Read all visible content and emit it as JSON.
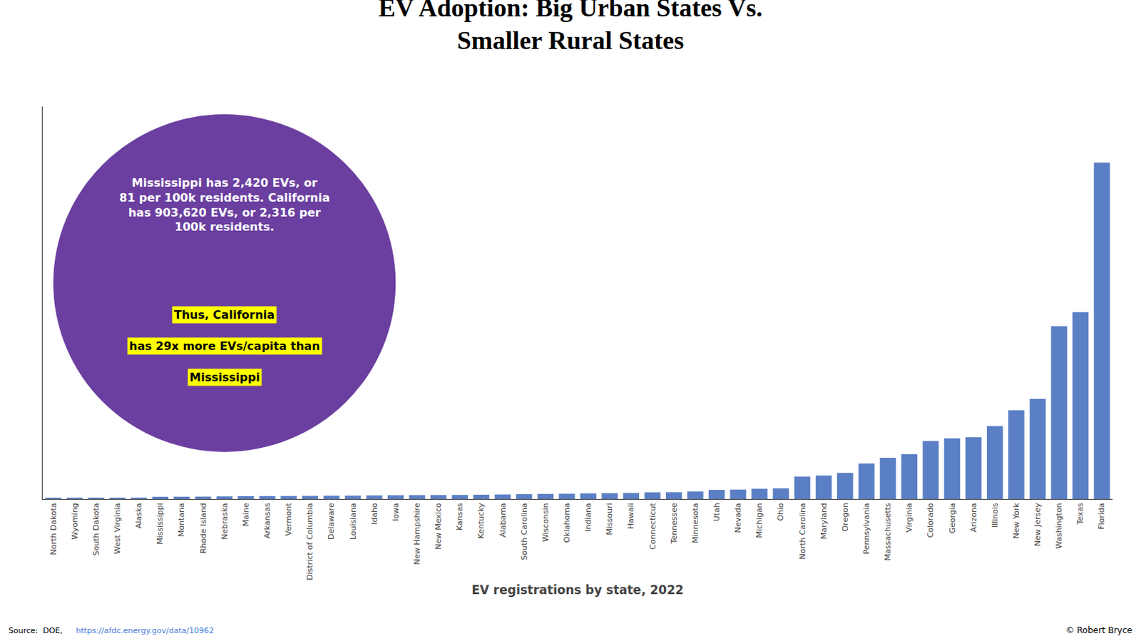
{
  "chart_data": {
    "type": "bar",
    "title": "EV Adoption: Big Urban States Vs.\nSmaller Rural States",
    "xlabel": "EV registrations by state, 2022",
    "categories": [
      "North Dakota",
      "Wyoming",
      "South Dakota",
      "West Virginia",
      "Alaska",
      "Mississippi",
      "Montana",
      "Rhode Island",
      "Nebraska",
      "Maine",
      "Arkansas",
      "Vermont",
      "District of Columbia",
      "Delaware",
      "Louisiana",
      "Idaho",
      "Iowa",
      "New Hampshire",
      "New Mexico",
      "Kansas",
      "Kentucky",
      "Alabama",
      "South Carolina",
      "Wisconsin",
      "Oklahoma",
      "Indiana",
      "Missouri",
      "Hawaii",
      "Connecticut",
      "Tennessee",
      "Minnesota",
      "Utah",
      "Nevada",
      "Michigan",
      "Ohio",
      "North Carolina",
      "Maryland",
      "Oregon",
      "Pennsylvania",
      "Massachusetts",
      "Virginia",
      "Colorado",
      "Georgia",
      "Arizona",
      "Illinois",
      "New York",
      "New Jersey",
      "Washington",
      "Texas",
      "Florida"
    ],
    "values": [
      990,
      1060,
      1420,
      1490,
      1560,
      2420,
      2490,
      2600,
      2850,
      3100,
      3180,
      3240,
      3380,
      3540,
      3650,
      3900,
      4100,
      4200,
      4300,
      4400,
      4600,
      4900,
      5200,
      5500,
      5700,
      6000,
      6300,
      6500,
      7200,
      7300,
      8100,
      9800,
      10100,
      11000,
      11400,
      24000,
      25200,
      28000,
      38000,
      44000,
      48000,
      62000,
      65000,
      66000,
      78000,
      95000,
      107000,
      185000,
      200000,
      360000
    ],
    "color": "#5b7fc4",
    "ylim": [
      0,
      420000
    ],
    "grid": false,
    "tick_labels": "x",
    "annotations": [
      "Mississippi has 2,420 EVs, or\n81 per 100k residents. California\nhas 903,620 EVs, or 2,316 per\n100k residents.",
      "Thus, California",
      "has 29x more EVs/capita than",
      "Mississippi",
      "Source:  DOE,",
      "https://afdc.energy.gov/data/10962",
      "© Robert Bryce"
    ]
  }
}
